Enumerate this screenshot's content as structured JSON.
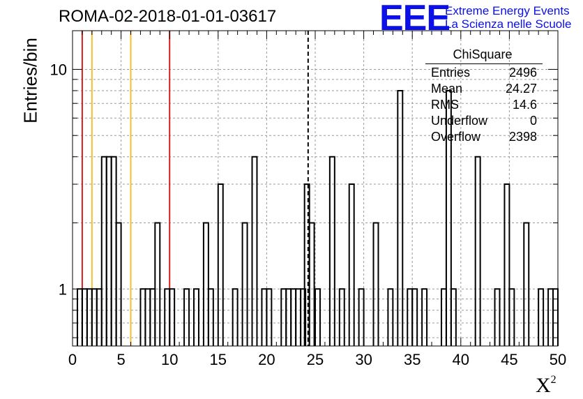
{
  "header": {
    "title": "ROMA-02-2018-01-01-03617",
    "logo_text": "EEE",
    "logo_line1": "Extreme Energy Events",
    "logo_line2": "La Scienza nelle Scuole"
  },
  "colors": {
    "logo": "#0a10e6",
    "red_line": "#d62020",
    "yellow_line": "#f2c12e",
    "grid": "#9a9a9a",
    "histogram": "#000000"
  },
  "stats": {
    "title": "ChiSquare",
    "rows": [
      {
        "k": "Entries",
        "v": "2496"
      },
      {
        "k": "Mean",
        "v": "24.27"
      },
      {
        "k": "RMS",
        "v": "14.6"
      },
      {
        "k": "Underflow",
        "v": "0"
      },
      {
        "k": "Overflow",
        "v": "2398"
      }
    ]
  },
  "chart_data": {
    "type": "bar",
    "histogram": true,
    "ylabel": "Entries/bin",
    "xlabel": "X",
    "xlabel_sup": "2",
    "xlim": [
      0,
      50
    ],
    "ylim": [
      0.55,
      15
    ],
    "yscale": "log",
    "grid": true,
    "x_ticks": [
      0,
      5,
      10,
      15,
      20,
      25,
      30,
      35,
      40,
      45,
      50
    ],
    "y_ticks": [
      1,
      10
    ],
    "bin_width": 0.5,
    "bins": [
      [
        0.5,
        1
      ],
      [
        1.0,
        1
      ],
      [
        1.5,
        1
      ],
      [
        2.0,
        1
      ],
      [
        2.5,
        1
      ],
      [
        3.0,
        4
      ],
      [
        3.5,
        4
      ],
      [
        4.0,
        4
      ],
      [
        4.5,
        2
      ],
      [
        7.0,
        1
      ],
      [
        7.5,
        1
      ],
      [
        8.0,
        1
      ],
      [
        8.5,
        2
      ],
      [
        9.5,
        1
      ],
      [
        10.0,
        1
      ],
      [
        11.5,
        1
      ],
      [
        12.5,
        1
      ],
      [
        13.5,
        2
      ],
      [
        14.0,
        1
      ],
      [
        15.0,
        3
      ],
      [
        16.5,
        1
      ],
      [
        17.5,
        2
      ],
      [
        18.5,
        4
      ],
      [
        19.5,
        1
      ],
      [
        20.0,
        1
      ],
      [
        21.5,
        1
      ],
      [
        22.0,
        1
      ],
      [
        22.5,
        1
      ],
      [
        23.0,
        1
      ],
      [
        23.5,
        1
      ],
      [
        23.9,
        3
      ],
      [
        24.4,
        2
      ],
      [
        25.0,
        1
      ],
      [
        26.5,
        4
      ],
      [
        27.5,
        1
      ],
      [
        28.5,
        3
      ],
      [
        29.5,
        1
      ],
      [
        31.0,
        2
      ],
      [
        32.5,
        1
      ],
      [
        33.5,
        8
      ],
      [
        34.5,
        1
      ],
      [
        35.0,
        1
      ],
      [
        36.0,
        1
      ],
      [
        38.0,
        1
      ],
      [
        38.5,
        8
      ],
      [
        39.0,
        1
      ],
      [
        41.5,
        4
      ],
      [
        43.5,
        1
      ],
      [
        44.5,
        3
      ],
      [
        45.0,
        1
      ],
      [
        46.5,
        2
      ],
      [
        48.0,
        1
      ],
      [
        49.0,
        1
      ],
      [
        49.5,
        1
      ]
    ],
    "vertical_markers": [
      {
        "x": 1,
        "color": "red"
      },
      {
        "x": 2,
        "color": "yellow"
      },
      {
        "x": 6,
        "color": "yellow"
      },
      {
        "x": 10,
        "color": "red"
      },
      {
        "x": 24.27,
        "color": "black",
        "style": "dashed"
      }
    ]
  }
}
